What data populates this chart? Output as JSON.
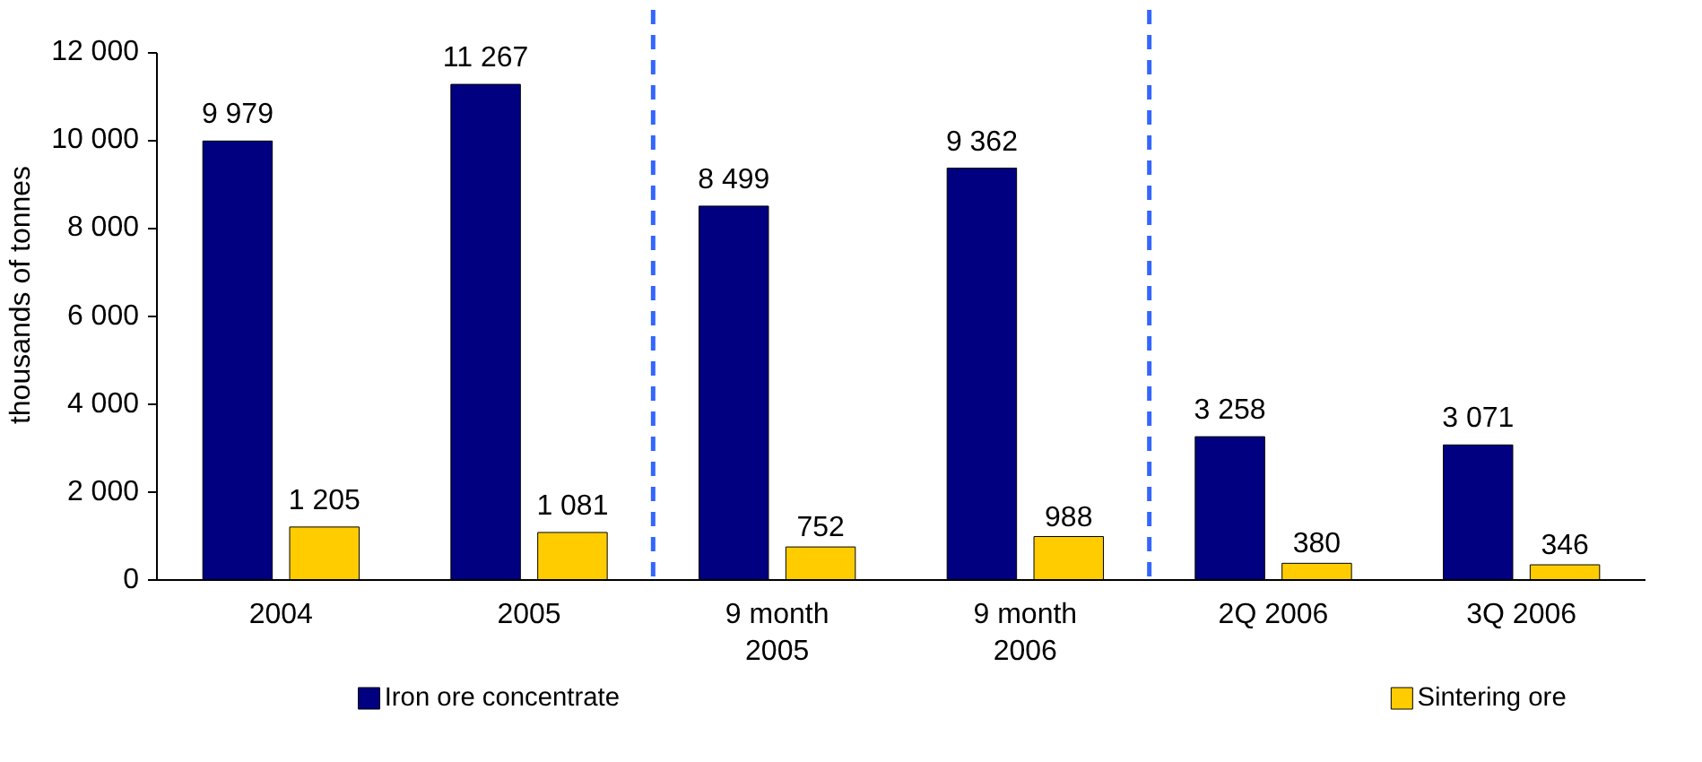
{
  "chart_data": {
    "type": "bar",
    "ylabel": "thousands of tonnes",
    "categories": [
      "2004",
      "2005",
      "9 month\n2005",
      "9 month\n2006",
      "2Q 2006",
      "3Q 2006"
    ],
    "series": [
      {
        "name": "Iron ore concentrate",
        "color": "#000080",
        "values": [
          9979,
          11267,
          8499,
          9362,
          3258,
          3071
        ],
        "value_labels": [
          "9 979",
          "11 267",
          "8 499",
          "9 362",
          "3 258",
          "3 071"
        ]
      },
      {
        "name": "Sintering ore",
        "color": "#ffcc00",
        "values": [
          1205,
          1081,
          752,
          988,
          380,
          346
        ],
        "value_labels": [
          "1 205",
          "1 081",
          "752",
          "988",
          "380",
          "346"
        ]
      }
    ],
    "ylim": [
      0,
      12000
    ],
    "yticks": [
      0,
      {
        "value": 2000,
        "label": "2 000"
      },
      {
        "value": 4000,
        "label": "4 000"
      },
      {
        "value": 6000,
        "label": "6 000"
      },
      {
        "value": 8000,
        "label": "8 000"
      },
      {
        "value": 10000,
        "label": "10 000"
      },
      {
        "value": 12000,
        "label": "12 000"
      }
    ],
    "legend": "bottom"
  }
}
